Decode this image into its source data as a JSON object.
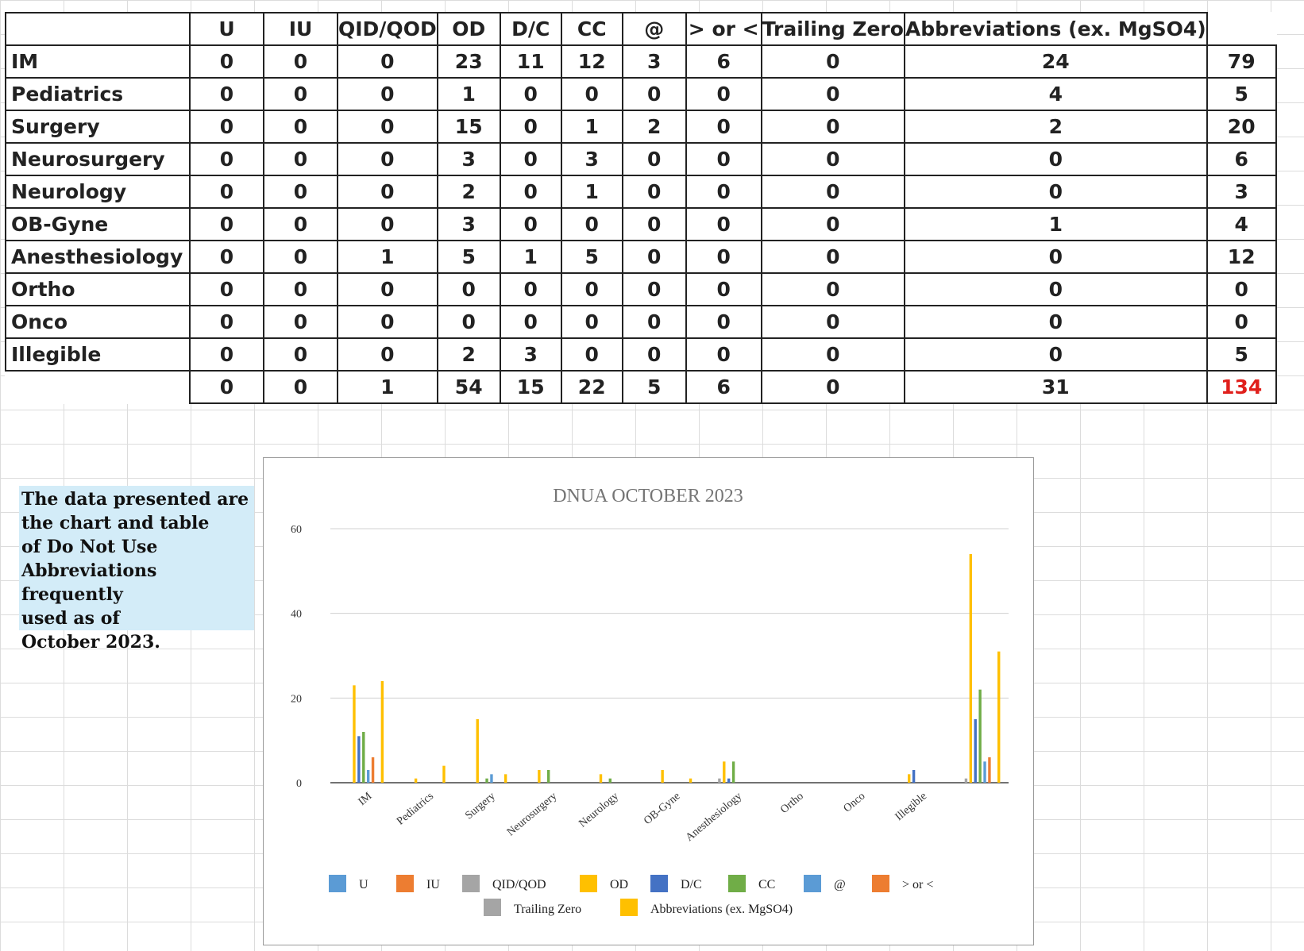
{
  "table": {
    "columns": [
      "U",
      "IU",
      "QID/QOD",
      "OD",
      "D/C",
      "CC",
      "@",
      "> or <",
      "Trailing Zero",
      "Abbreviations (ex. MgSO4)"
    ],
    "rows": [
      {
        "label": "IM",
        "values": [
          "0",
          "0",
          "0",
          "23",
          "11",
          "12",
          "3",
          "6",
          "0",
          "24"
        ],
        "total": "79"
      },
      {
        "label": "Pediatrics",
        "values": [
          "0",
          "0",
          "0",
          "1",
          "0",
          "0",
          "0",
          "0",
          "0",
          "4"
        ],
        "total": "5"
      },
      {
        "label": "Surgery",
        "values": [
          "0",
          "0",
          "0",
          "15",
          "0",
          "1",
          "2",
          "0",
          "0",
          "2"
        ],
        "total": "20"
      },
      {
        "label": "Neurosurgery",
        "values": [
          "0",
          "0",
          "0",
          "3",
          "0",
          "3",
          "0",
          "0",
          "0",
          "0"
        ],
        "total": "6"
      },
      {
        "label": "Neurology",
        "values": [
          "0",
          "0",
          "0",
          "2",
          "0",
          "1",
          "0",
          "0",
          "0",
          "0"
        ],
        "total": "3"
      },
      {
        "label": "OB-Gyne",
        "values": [
          "0",
          "0",
          "0",
          "3",
          "0",
          "0",
          "0",
          "0",
          "0",
          "1"
        ],
        "total": "4"
      },
      {
        "label": "Anesthesiology",
        "values": [
          "0",
          "0",
          "1",
          "5",
          "1",
          "5",
          "0",
          "0",
          "0",
          "0"
        ],
        "total": "12"
      },
      {
        "label": "Ortho",
        "values": [
          "0",
          "0",
          "0",
          "0",
          "0",
          "0",
          "0",
          "0",
          "0",
          "0"
        ],
        "total": "0"
      },
      {
        "label": "Onco",
        "values": [
          "0",
          "0",
          "0",
          "0",
          "0",
          "0",
          "0",
          "0",
          "0",
          "0"
        ],
        "total": "0"
      },
      {
        "label": "Illegible",
        "values": [
          "0",
          "0",
          "0",
          "2",
          "3",
          "0",
          "0",
          "0",
          "0",
          "0"
        ],
        "total": "5"
      }
    ],
    "column_totals": [
      "0",
      "0",
      "1",
      "54",
      "15",
      "22",
      "5",
      "6",
      "0",
      "31"
    ],
    "grand_total": "134",
    "grand_total_color": "#e0201c"
  },
  "note": {
    "text": "The data presented are\nthe chart and table\nof Do Not Use\nAbbreviations frequently\nused as of\nOctober 2023."
  },
  "chart_data": {
    "type": "bar",
    "title": "DNUA OCTOBER 2023",
    "xlabel": "",
    "ylabel": "",
    "ylim": [
      0,
      60
    ],
    "yticks": [
      0,
      20,
      40,
      60
    ],
    "grid": true,
    "legend_position": "bottom",
    "categories": [
      "IM",
      "Pediatrics",
      "Surgery",
      "Neurosurgery",
      "Neurology",
      "OB-Gyne",
      "Anesthesiology",
      "Ortho",
      "Onco",
      "Illegible",
      ""
    ],
    "series": [
      {
        "name": "U",
        "color": "#5b9bd5",
        "values": [
          0,
          0,
          0,
          0,
          0,
          0,
          0,
          0,
          0,
          0,
          0
        ]
      },
      {
        "name": "IU",
        "color": "#ed7d31",
        "values": [
          0,
          0,
          0,
          0,
          0,
          0,
          0,
          0,
          0,
          0,
          0
        ]
      },
      {
        "name": "QID/QOD",
        "color": "#a5a5a5",
        "values": [
          0,
          0,
          0,
          0,
          0,
          0,
          1,
          0,
          0,
          0,
          1
        ]
      },
      {
        "name": "OD",
        "color": "#ffc000",
        "values": [
          23,
          1,
          15,
          3,
          2,
          3,
          5,
          0,
          0,
          2,
          54
        ]
      },
      {
        "name": "D/C",
        "color": "#4472c4",
        "values": [
          11,
          0,
          0,
          0,
          0,
          0,
          1,
          0,
          0,
          3,
          15
        ]
      },
      {
        "name": "CC",
        "color": "#70ad47",
        "values": [
          12,
          0,
          1,
          3,
          1,
          0,
          5,
          0,
          0,
          0,
          22
        ]
      },
      {
        "name": "@",
        "color": "#5b9bd5",
        "values": [
          3,
          0,
          2,
          0,
          0,
          0,
          0,
          0,
          0,
          0,
          5
        ]
      },
      {
        "name": "> or <",
        "color": "#ed7d31",
        "values": [
          6,
          0,
          0,
          0,
          0,
          0,
          0,
          0,
          0,
          0,
          6
        ]
      },
      {
        "name": "Trailing Zero",
        "color": "#a5a5a5",
        "values": [
          0,
          0,
          0,
          0,
          0,
          0,
          0,
          0,
          0,
          0,
          0
        ]
      },
      {
        "name": "Abbreviations (ex. MgSO4)",
        "color": "#ffc000",
        "values": [
          24,
          4,
          2,
          0,
          0,
          1,
          0,
          0,
          0,
          0,
          31
        ]
      }
    ]
  }
}
